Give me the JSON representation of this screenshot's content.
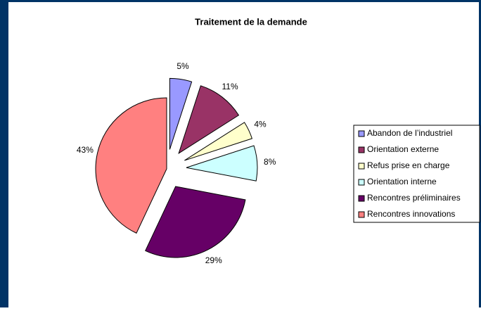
{
  "chart_data": {
    "type": "pie",
    "title": "Traitement de la demande",
    "categories": [
      "Abandon de l’industriel",
      "Orientation externe",
      "Refus prise en charge",
      "Orientation interne",
      "Rencontres préliminaires",
      "Rencontres innovations"
    ],
    "values": [
      5,
      11,
      4,
      8,
      29,
      43
    ],
    "value_labels": [
      "5%",
      "11%",
      "4%",
      "8%",
      "29%",
      "43%"
    ],
    "colors": [
      "#9999ff",
      "#993366",
      "#ffffcc",
      "#ccffff",
      "#660066",
      "#ff8080"
    ],
    "legend": "right"
  }
}
